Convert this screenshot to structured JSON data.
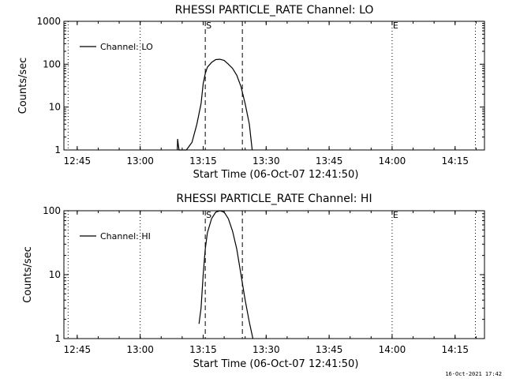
{
  "footer": {
    "timestamp": "16-Oct-2021 17:42"
  },
  "chart_data": [
    {
      "type": "line",
      "title": "RHESSI PARTICLE_RATE Channel: LO",
      "xlabel": "Start Time (06-Oct-07 12:41:50)",
      "ylabel": "Counts/sec",
      "yscale": "log",
      "ylim": [
        1,
        1000
      ],
      "xlim": [
        "12:41:50",
        "14:22:00"
      ],
      "xticks": [
        "12:45",
        "13:00",
        "13:15",
        "13:30",
        "13:45",
        "14:00",
        "14:15"
      ],
      "yticks": [
        "1",
        "10",
        "100",
        "1000"
      ],
      "legend": "top-left",
      "series": [
        {
          "name": "Channel: LO",
          "x": [
            "13:08:50",
            "13:08:55",
            "13:09:05",
            "13:09:15",
            "13:11:00",
            "13:12:20",
            "13:13:30",
            "13:14:30",
            "13:15:00",
            "13:15:30",
            "13:16:00",
            "13:17:00",
            "13:18:00",
            "13:19:00",
            "13:20:00",
            "13:21:00",
            "13:22:00",
            "13:23:00",
            "13:24:00",
            "13:25:00",
            "13:26:00",
            "13:26:40"
          ],
          "y": [
            1,
            1.8,
            1.3,
            1,
            1,
            1.5,
            4,
            12,
            35,
            60,
            85,
            110,
            128,
            130,
            122,
            100,
            80,
            55,
            30,
            12,
            4,
            1
          ]
        }
      ],
      "markers": [
        {
          "label": "S",
          "time": "13:15:30",
          "style": "dashed"
        },
        {
          "label": "",
          "time": "13:24:20",
          "style": "dashed"
        },
        {
          "label": "",
          "time": "13:00:00",
          "style": "dotted"
        },
        {
          "label": "E",
          "time": "14:00:00",
          "style": "dotted"
        },
        {
          "label": "",
          "time": "14:19:50",
          "style": "dotted"
        },
        {
          "label": "",
          "time": "12:42:50",
          "style": "dotted"
        }
      ]
    },
    {
      "type": "line",
      "title": "RHESSI PARTICLE_RATE Channel: HI",
      "xlabel": "Start Time (06-Oct-07 12:41:50)",
      "ylabel": "Counts/sec",
      "yscale": "log",
      "ylim": [
        1,
        100
      ],
      "xlim": [
        "12:41:50",
        "14:22:00"
      ],
      "xticks": [
        "12:45",
        "13:00",
        "13:15",
        "13:30",
        "13:45",
        "14:00",
        "14:15"
      ],
      "yticks": [
        "1",
        "10",
        "100"
      ],
      "legend": "top-left",
      "series": [
        {
          "name": "Channel: HI",
          "x": [
            "13:14:00",
            "13:14:30",
            "13:15:00",
            "13:15:30",
            "13:16:00",
            "13:17:00",
            "13:18:00",
            "13:19:00",
            "13:20:00",
            "13:21:00",
            "13:22:00",
            "13:23:00",
            "13:24:00",
            "13:25:00",
            "13:26:00",
            "13:26:50"
          ],
          "y": [
            1.7,
            3,
            10,
            25,
            45,
            75,
            95,
            100,
            95,
            75,
            48,
            25,
            10,
            4,
            1.8,
            1
          ]
        }
      ],
      "markers": [
        {
          "label": "S",
          "time": "13:15:30",
          "style": "dashed"
        },
        {
          "label": "",
          "time": "13:24:20",
          "style": "dashed"
        },
        {
          "label": "",
          "time": "13:00:00",
          "style": "dotted"
        },
        {
          "label": "E",
          "time": "14:00:00",
          "style": "dotted"
        },
        {
          "label": "",
          "time": "14:19:50",
          "style": "dotted"
        },
        {
          "label": "",
          "time": "12:42:50",
          "style": "dotted"
        }
      ]
    }
  ]
}
